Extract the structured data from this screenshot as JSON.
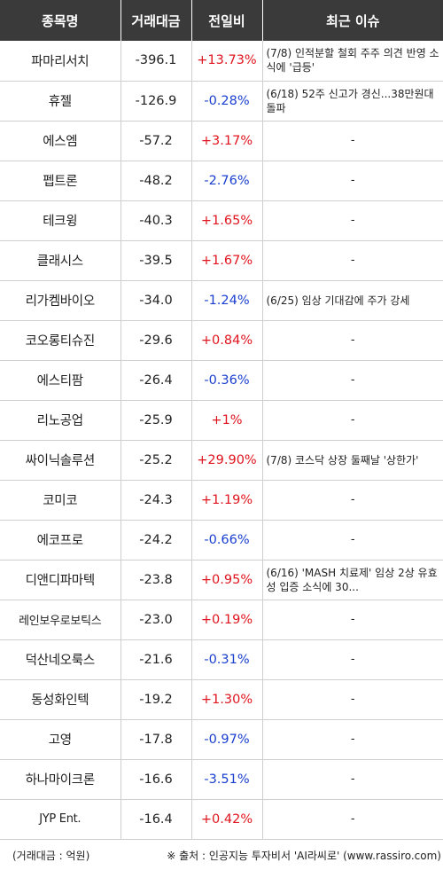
{
  "headers": {
    "name": "종목명",
    "volume": "거래대금",
    "change": "전일비",
    "issue": "최근 이슈"
  },
  "rows": [
    {
      "name": "파마리서치",
      "volume": "-396.1",
      "change": "+13.73%",
      "dir": "up",
      "issue": "(7/8) 인적분할 철회 주주 의견 반영 소식에 '급등'"
    },
    {
      "name": "휴젤",
      "volume": "-126.9",
      "change": "-0.28%",
      "dir": "down",
      "issue": "(6/18) 52주 신고가 경신...38만원대 돌파"
    },
    {
      "name": "에스엠",
      "volume": "-57.2",
      "change": "+3.17%",
      "dir": "up",
      "issue": "-"
    },
    {
      "name": "펩트론",
      "volume": "-48.2",
      "change": "-2.76%",
      "dir": "down",
      "issue": "-"
    },
    {
      "name": "테크윙",
      "volume": "-40.3",
      "change": "+1.65%",
      "dir": "up",
      "issue": "-"
    },
    {
      "name": "클래시스",
      "volume": "-39.5",
      "change": "+1.67%",
      "dir": "up",
      "issue": "-"
    },
    {
      "name": "리가켐바이오",
      "volume": "-34.0",
      "change": "-1.24%",
      "dir": "down",
      "issue": "(6/25) 임상 기대감에 주가 강세"
    },
    {
      "name": "코오롱티슈진",
      "volume": "-29.6",
      "change": "+0.84%",
      "dir": "up",
      "issue": "-"
    },
    {
      "name": "에스티팜",
      "volume": "-26.4",
      "change": "-0.36%",
      "dir": "down",
      "issue": "-"
    },
    {
      "name": "리노공업",
      "volume": "-25.9",
      "change": "+1%",
      "dir": "up",
      "issue": "-"
    },
    {
      "name": "싸이닉솔루션",
      "volume": "-25.2",
      "change": "+29.90%",
      "dir": "up",
      "issue": "(7/8) 코스닥 상장 둘째날 '상한가'"
    },
    {
      "name": "코미코",
      "volume": "-24.3",
      "change": "+1.19%",
      "dir": "up",
      "issue": "-"
    },
    {
      "name": "에코프로",
      "volume": "-24.2",
      "change": "-0.66%",
      "dir": "down",
      "issue": "-"
    },
    {
      "name": "디앤디파마텍",
      "volume": "-23.8",
      "change": "+0.95%",
      "dir": "up",
      "issue": "(6/16) 'MASH 치료제' 임상 2상 유효성 입증 소식에 30..."
    },
    {
      "name": "레인보우로보틱스",
      "volume": "-23.0",
      "change": "+0.19%",
      "dir": "up",
      "issue": "-",
      "small": true
    },
    {
      "name": "덕산네오룩스",
      "volume": "-21.6",
      "change": "-0.31%",
      "dir": "down",
      "issue": "-"
    },
    {
      "name": "동성화인텍",
      "volume": "-19.2",
      "change": "+1.30%",
      "dir": "up",
      "issue": "-"
    },
    {
      "name": "고영",
      "volume": "-17.8",
      "change": "-0.97%",
      "dir": "down",
      "issue": "-"
    },
    {
      "name": "하나마이크론",
      "volume": "-16.6",
      "change": "-3.51%",
      "dir": "down",
      "issue": "-"
    },
    {
      "name": "JYP Ent.",
      "volume": "-16.4",
      "change": "+0.42%",
      "dir": "up",
      "issue": "-",
      "small": true
    }
  ],
  "footer": {
    "unit_note": "(거래대금 : 억원)",
    "source": "※ 출처 : 인공지능 투자비서 'AI라씨로' (www.rassiro.com)"
  },
  "colors": {
    "header_bg": "#3a3a3a",
    "up": "#e0141e",
    "down": "#1a3fcf"
  }
}
